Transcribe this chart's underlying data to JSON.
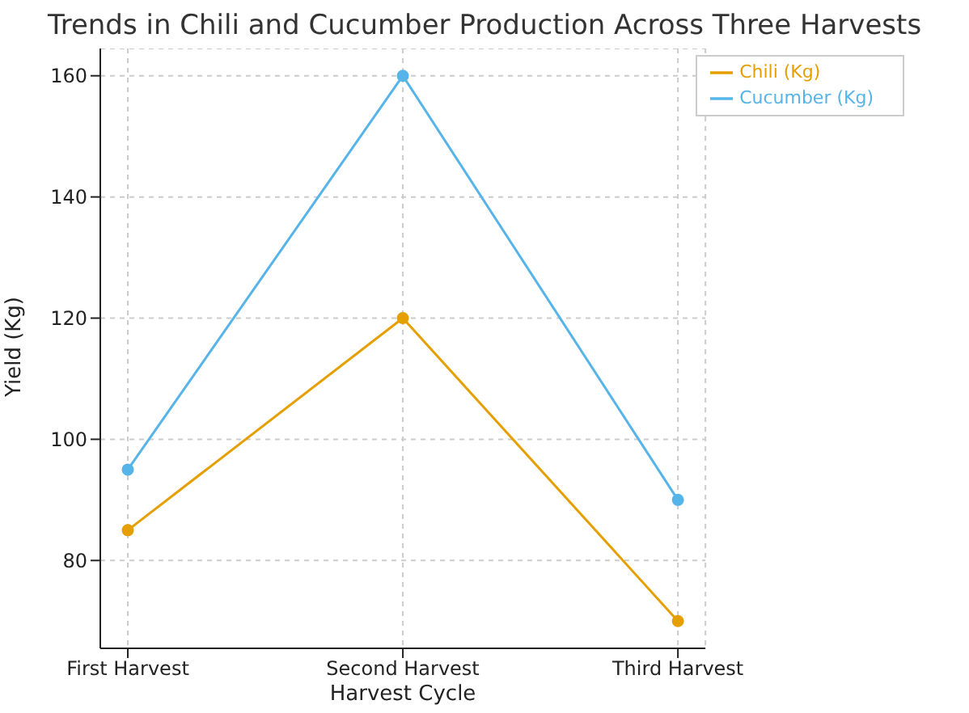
{
  "chart_data": {
    "type": "line",
    "title": "Trends in Chili and Cucumber Production Across Three Harvests",
    "xlabel": "Harvest Cycle",
    "ylabel": "Yield (Kg)",
    "categories": [
      "First Harvest",
      "Second Harvest",
      "Third Harvest"
    ],
    "series": [
      {
        "name": "Chili (Kg)",
        "color": "#e69f00",
        "values": [
          85,
          120,
          70
        ]
      },
      {
        "name": "Cucumber (Kg)",
        "color": "#56b4e9",
        "values": [
          95,
          160,
          90
        ]
      }
    ],
    "ylim": [
      65.5,
      164.5
    ],
    "yticks": [
      80,
      100,
      120,
      140,
      160
    ],
    "grid": true,
    "legend": "top right",
    "marker": "circle",
    "line_style": "solid"
  }
}
